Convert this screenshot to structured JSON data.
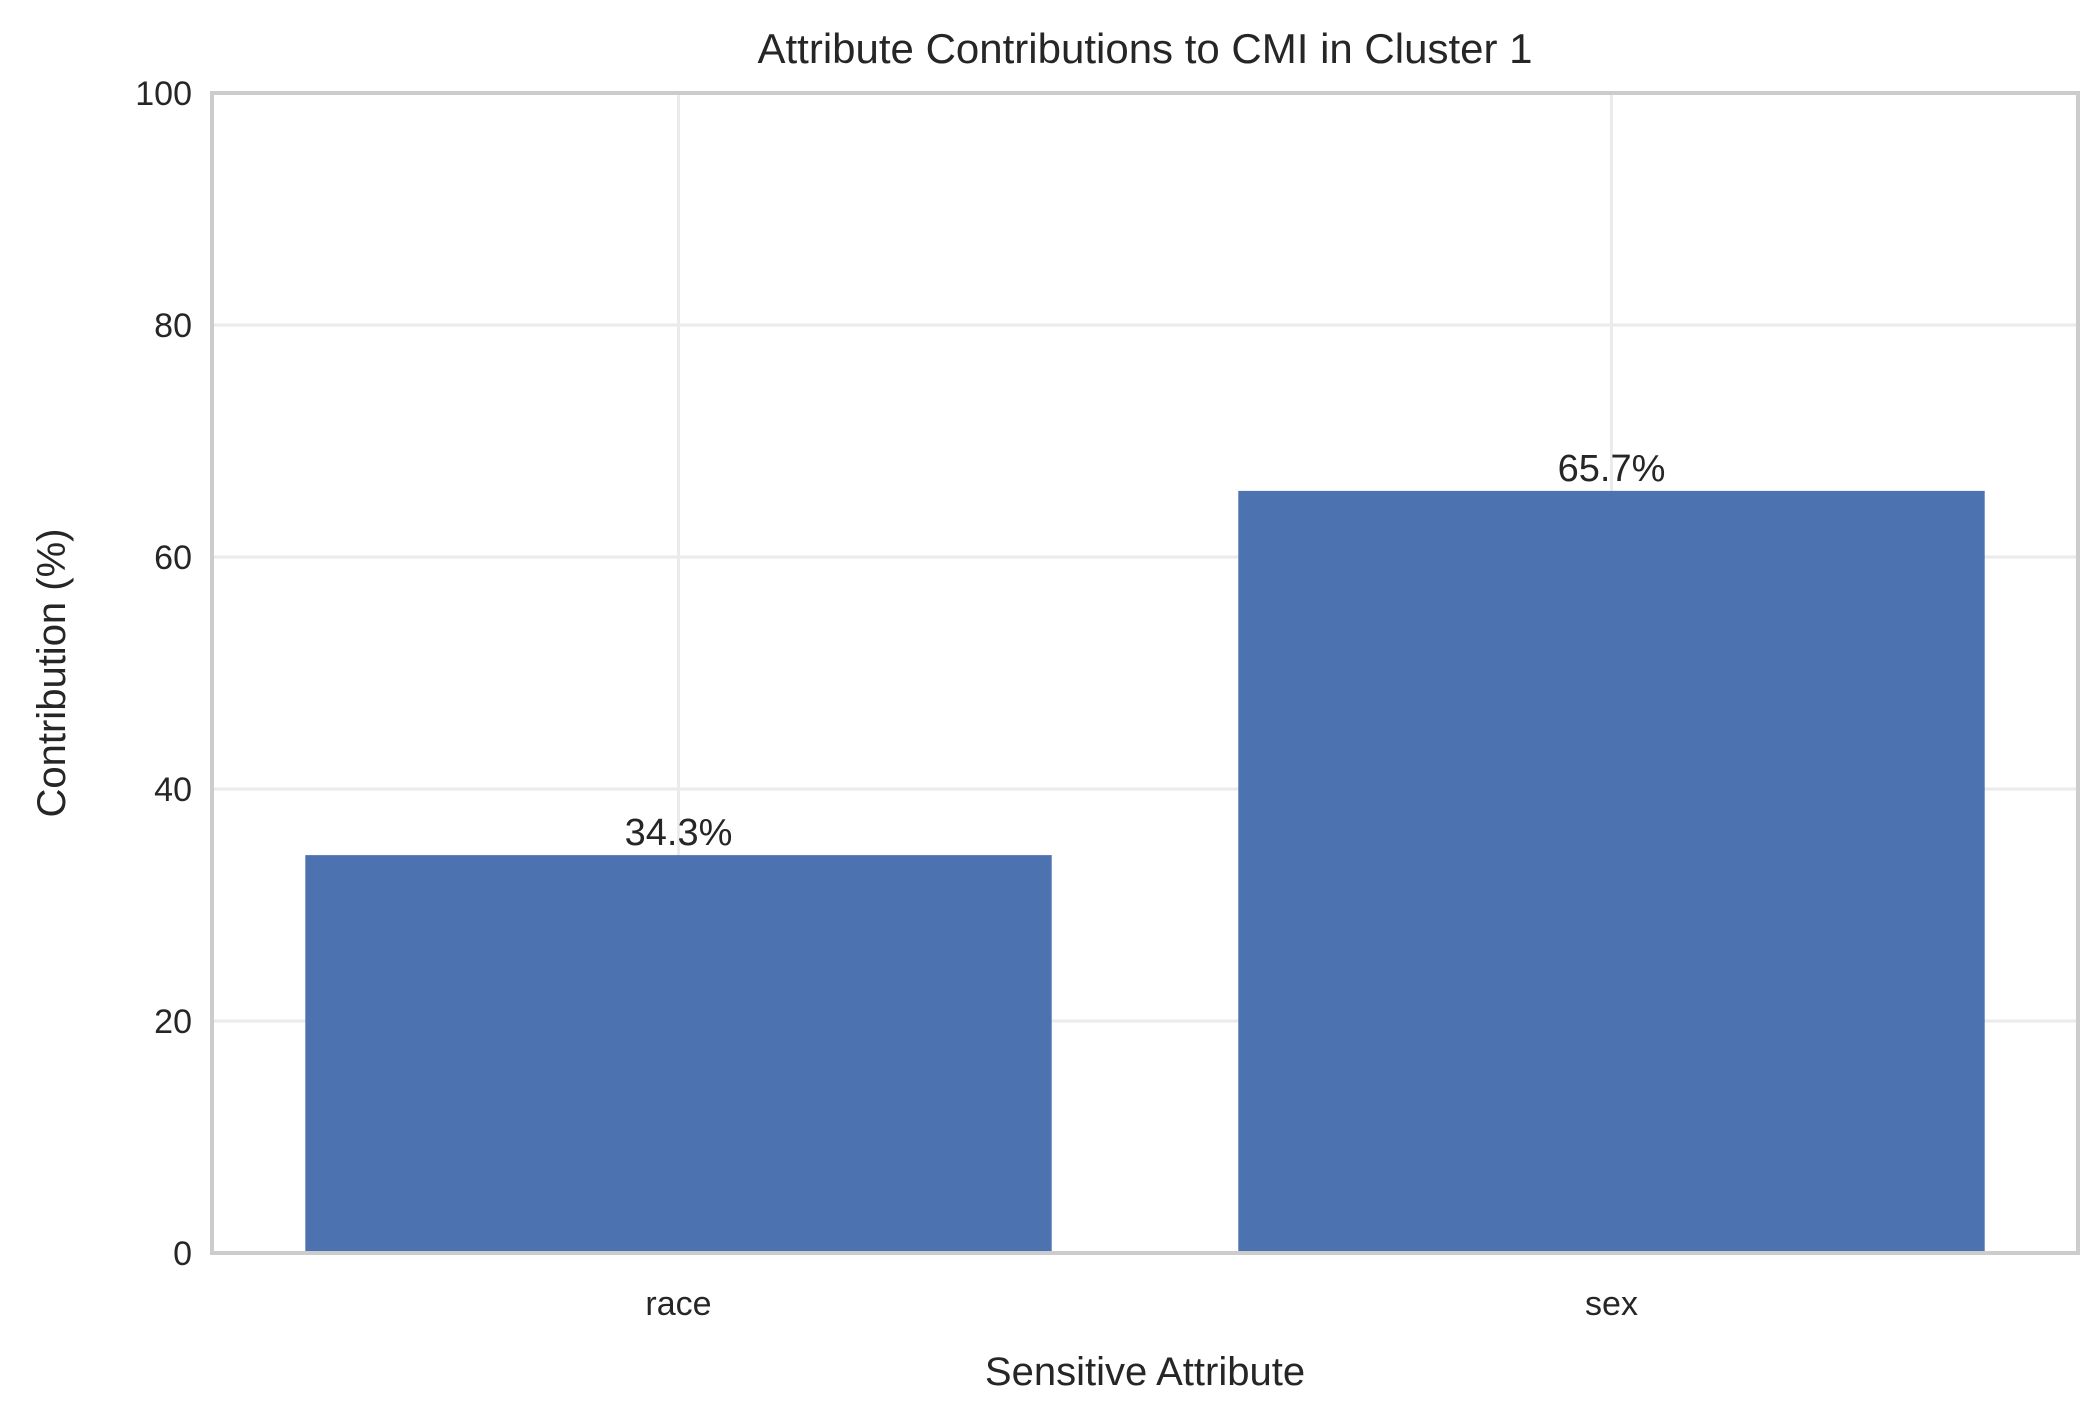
{
  "chart_data": {
    "type": "bar",
    "title": "Attribute Contributions to CMI in Cluster 1",
    "xlabel": "Sensitive Attribute",
    "ylabel": "Contribution (%)",
    "categories": [
      "race",
      "sex"
    ],
    "values": [
      34.3,
      65.7
    ],
    "data_labels": [
      "34.3%",
      "65.7%"
    ],
    "ylim": [
      0,
      100
    ],
    "yticks": [
      0,
      20,
      40,
      60,
      80,
      100
    ],
    "grid": true,
    "bar_color": "#4c72b0"
  }
}
